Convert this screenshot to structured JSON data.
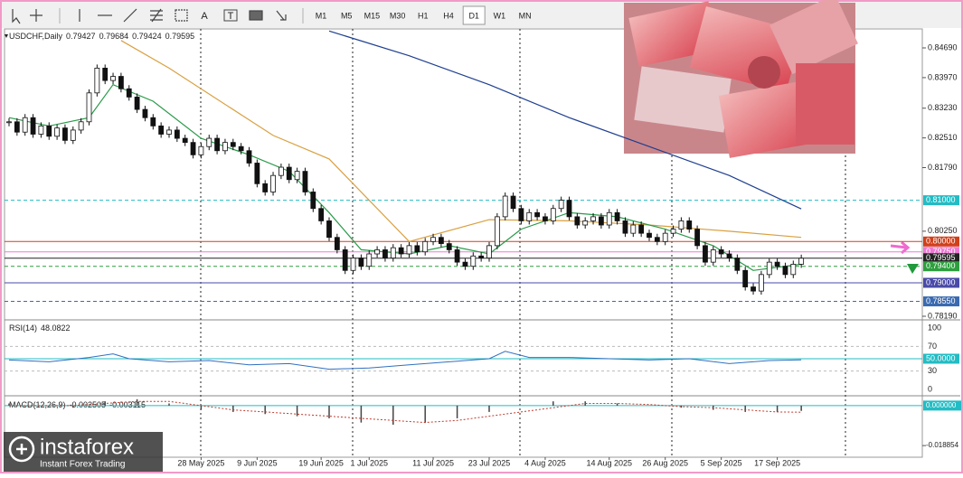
{
  "toolbar": {
    "tools": [
      "A",
      "T"
    ],
    "timeframes": [
      "M1",
      "M5",
      "M15",
      "M30",
      "H1",
      "H4",
      "D1",
      "W1",
      "MN"
    ],
    "active": "D1"
  },
  "chart_data": {
    "type": "candlestick",
    "title": "USDCHF,Daily",
    "open": 0.79427,
    "high": 0.79684,
    "low": 0.79424,
    "closes": [
      0.829,
      0.8265,
      0.83,
      0.826,
      0.828,
      0.8255,
      0.8275,
      0.8245,
      0.827,
      0.829,
      0.836,
      0.842,
      0.839,
      0.84,
      0.837,
      0.835,
      0.832,
      0.83,
      0.828,
      0.826,
      0.827,
      0.825,
      0.824,
      0.821,
      0.823,
      0.825,
      0.822,
      0.824,
      0.823,
      0.822,
      0.819,
      0.814,
      0.812,
      0.816,
      0.818,
      0.815,
      0.817,
      0.812,
      0.808,
      0.805,
      0.801,
      0.798,
      0.793,
      0.796,
      0.794,
      0.797,
      0.798,
      0.796,
      0.7985,
      0.797,
      0.799,
      0.7975,
      0.8,
      0.801,
      0.7995,
      0.798,
      0.795,
      0.794,
      0.7965,
      0.796,
      0.799,
      0.806,
      0.811,
      0.808,
      0.805,
      0.807,
      0.806,
      0.805,
      0.808,
      0.81,
      0.806,
      0.804,
      0.805,
      0.806,
      0.804,
      0.807,
      0.805,
      0.802,
      0.804,
      0.802,
      0.801,
      0.8,
      0.802,
      0.803,
      0.805,
      0.803,
      0.799,
      0.795,
      0.798,
      0.797,
      0.796,
      0.793,
      0.789,
      0.788,
      0.792,
      0.795,
      0.794,
      0.792,
      0.7945,
      0.79595
    ],
    "ylim": [
      0.78146,
      0.85128
    ],
    "yticks": [
      {
        "value": 0.8469,
        "label": "0.84690"
      },
      {
        "value": 0.8397,
        "label": "0.83970"
      },
      {
        "value": 0.8323,
        "label": "0.83230"
      },
      {
        "value": 0.8251,
        "label": "0.82510"
      },
      {
        "value": 0.8179,
        "label": "0.81790"
      },
      {
        "value": 0.8025,
        "label": "0.80250"
      },
      {
        "value": 0.7819,
        "label": "0.78190"
      }
    ],
    "levels": [
      {
        "value": 0.81,
        "label": "0.81000",
        "color": "#22bcc4",
        "dash": true
      },
      {
        "value": 0.8,
        "label": "0.80000",
        "color": "#d0401a",
        "dash": false
      },
      {
        "value": 0.7975,
        "label": "0.79750",
        "color": "#ee7ad4",
        "dash": false
      },
      {
        "value": 0.79595,
        "label": "0.79595",
        "color": "#222222",
        "dash": false
      },
      {
        "value": 0.794,
        "label": "0.79400",
        "color": "#2e9e3e",
        "dash": true
      },
      {
        "value": 0.79,
        "label": "0.79000",
        "color": "#4a4aa8",
        "dash": false
      },
      {
        "value": 0.7855,
        "label": "0.78550",
        "color": "#3a6ab0",
        "dash": true
      }
    ],
    "xticks": [
      {
        "value": 24,
        "label": "28 May 2025"
      },
      {
        "value": 31,
        "label": "9 Jun 2025"
      },
      {
        "value": 39,
        "label": "19 Jun 2025"
      },
      {
        "value": 45,
        "label": "1 Jul 2025"
      },
      {
        "value": 53,
        "label": "11 Jul 2025"
      },
      {
        "value": 60,
        "label": "23 Jul 2025"
      },
      {
        "value": 67,
        "label": "4 Aug 2025"
      },
      {
        "value": 75,
        "label": "14 Aug 2025"
      },
      {
        "value": 82,
        "label": "26 Aug 2025"
      },
      {
        "value": 89,
        "label": "5 Sep 2025"
      },
      {
        "value": 96,
        "label": "17 Sep 2025"
      }
    ],
    "lines": [
      {
        "color": "#1f3f8f",
        "x": [
          40,
          50,
          60,
          70,
          80,
          90,
          99
        ],
        "values": [
          0.851,
          0.845,
          0.838,
          0.83,
          0.823,
          0.816,
          0.8079
        ]
      },
      {
        "color": "#d9a040",
        "x": [
          14,
          20,
          33,
          40,
          50,
          60,
          70,
          80,
          90,
          99
        ],
        "values": [
          0.8487,
          0.842,
          0.8257,
          0.82,
          0.8,
          0.8053,
          0.805,
          0.804,
          0.8025,
          0.801
        ]
      },
      {
        "color": "#2a9a4a",
        "x": [
          0,
          5,
          10,
          13,
          18,
          24,
          30,
          35,
          40,
          44,
          50,
          55,
          60,
          64,
          70,
          76,
          82,
          88,
          93,
          99
        ],
        "values": [
          0.83,
          0.828,
          0.83,
          0.838,
          0.834,
          0.825,
          0.821,
          0.817,
          0.807,
          0.798,
          0.797,
          0.799,
          0.797,
          0.803,
          0.807,
          0.806,
          0.803,
          0.799,
          0.793,
          0.7945
        ]
      }
    ],
    "rsi": {
      "title": "RSI(14)",
      "ylim": [
        0,
        100
      ],
      "yticks": [
        0,
        30,
        70,
        100
      ],
      "level": {
        "value": 50,
        "label": "50.0000"
      },
      "color": "#3070c0",
      "x": [
        0,
        5,
        10,
        13,
        15,
        20,
        25,
        30,
        35,
        40,
        45,
        50,
        55,
        60,
        62,
        65,
        70,
        75,
        80,
        85,
        90,
        95,
        99
      ],
      "values": [
        48,
        45,
        52,
        58,
        50,
        45,
        47,
        40,
        42,
        33,
        35,
        40,
        45,
        50,
        62,
        52,
        52,
        50,
        48,
        50,
        42,
        47,
        48.0822
      ]
    },
    "macd": {
      "title": "MACD(12,26,9)",
      "ylim": [
        -0.02178,
        0.00335
      ],
      "yticks": [
        {
          "value": 0,
          "label": "0.000000"
        },
        -0.018854
      ],
      "signal_color": "#c0392b",
      "x": [
        0,
        4,
        8,
        12,
        16,
        20,
        24,
        28,
        32,
        36,
        40,
        44,
        48,
        52,
        56,
        60,
        64,
        68,
        72,
        76,
        80,
        84,
        88,
        92,
        96,
        99
      ],
      "histogram": [
        0.001,
        0,
        -0.001,
        0.002,
        0.003,
        0.001,
        -0.002,
        -0.003,
        -0.004,
        -0.005,
        -0.006,
        -0.008,
        -0.009,
        -0.008,
        -0.006,
        -0.003,
        0,
        0.002,
        0.002,
        0.001,
        0,
        -0.001,
        -0.002,
        -0.003,
        -0.003,
        -0.002505
      ],
      "signal": [
        0,
        0,
        0,
        0.001,
        0.002,
        0.002,
        0,
        -0.002,
        -0.003,
        -0.004,
        -0.005,
        -0.006,
        -0.007,
        -0.008,
        -0.007,
        -0.005,
        -0.003,
        -0.001,
        0.001,
        0.001,
        0.0005,
        -0.0005,
        -0.001,
        -0.002,
        -0.003,
        -0.003115
      ]
    }
  },
  "logo": {
    "name": "instaforex",
    "tagline": "Instant Forex Trading"
  }
}
